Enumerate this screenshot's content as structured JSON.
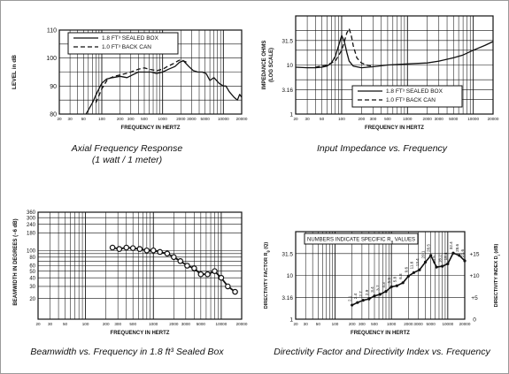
{
  "chart_data": [
    {
      "type": "line",
      "title": "Axial Frequency Response",
      "subtitle": "(1 watt / 1 meter)",
      "xlabel": "FREQUENCY IN HERTZ",
      "ylabel": "LEVEL in dB",
      "xscale": "log",
      "xlim": [
        20,
        20000
      ],
      "ylim": [
        80,
        110
      ],
      "x_ticks": [
        "20",
        "30",
        "50",
        "100",
        "200",
        "300",
        "500",
        "1000",
        "2000",
        "3000",
        "5000",
        "10000",
        "20000"
      ],
      "y_ticks": [
        "80",
        "90",
        "100",
        "110"
      ],
      "legend": {
        "placement": "top",
        "entries": [
          {
            "label": "1.8 FT³ SEALED BOX",
            "style": "solid"
          },
          {
            "label": "1.0 FT³ BACK CAN",
            "style": "dashed"
          }
        ]
      },
      "grid": true,
      "series": [
        {
          "name": "1.8 FT³ SEALED BOX",
          "style": "solid",
          "x": [
            55,
            70,
            85,
            100,
            120,
            150,
            200,
            260,
            320,
            400,
            500,
            650,
            800,
            1000,
            1250,
            1600,
            1900,
            2200,
            2700,
            3200,
            3800,
            4500,
            5200,
            6000,
            7000,
            8500,
            10000,
            11000,
            12500,
            15000,
            17000,
            18500,
            20000
          ],
          "y": [
            80,
            84,
            88,
            91,
            92.5,
            93,
            93.5,
            93,
            94,
            95,
            95,
            95,
            94.5,
            95,
            96,
            97,
            98.5,
            99,
            97,
            95.5,
            95,
            95,
            94.5,
            92,
            93,
            91,
            90,
            90,
            88,
            86,
            85,
            87,
            86
          ]
        },
        {
          "name": "1.0 FT³ BACK CAN",
          "style": "dashed",
          "x": [
            80,
            100,
            125,
            160,
            200,
            250,
            300,
            400,
            500,
            600,
            800,
            1000,
            1200,
            1500,
            1800,
            2000,
            2200,
            2500
          ],
          "y": [
            84,
            89,
            92.5,
            93.5,
            94,
            94.5,
            95,
            96,
            96.5,
            96,
            95.5,
            96,
            97,
            98,
            99,
            99.5,
            99,
            98.5
          ]
        }
      ]
    },
    {
      "type": "line",
      "title": "Input Impedance vs. Frequency",
      "xlabel": "FREQUENCY IN HERTZ",
      "ylabel": "IMPEDANCE OHMS",
      "ylabel2": "(LOG SCALE)",
      "xscale": "log",
      "yscale": "log",
      "xlim": [
        20,
        20000
      ],
      "ylim": [
        1,
        100
      ],
      "x_ticks": [
        "20",
        "30",
        "50",
        "100",
        "200",
        "300",
        "500",
        "1000",
        "2000",
        "3000",
        "5000",
        "10000",
        "20000"
      ],
      "y_ticks": [
        "1",
        "3.16",
        "10",
        "31.5"
      ],
      "legend": {
        "placement": "bottom-right",
        "entries": [
          {
            "label": "1.8 FT³ SEALED BOX",
            "style": "solid"
          },
          {
            "label": "1.0 FT³ BACK CAN",
            "style": "dashed"
          }
        ]
      },
      "grid": true,
      "series": [
        {
          "name": "1.8 FT³ SEALED BOX",
          "style": "solid",
          "x": [
            20,
            30,
            40,
            50,
            60,
            70,
            80,
            90,
            100,
            110,
            120,
            130,
            150,
            200,
            300,
            500,
            1000,
            2000,
            3000,
            5000,
            7000,
            10000,
            15000,
            20000
          ],
          "y": [
            9,
            8.8,
            8.8,
            9,
            9.5,
            11,
            15,
            25,
            40,
            30,
            18,
            12,
            9.5,
            8.8,
            9.2,
            10,
            10.5,
            11,
            12,
            14,
            16,
            20,
            25,
            30
          ]
        },
        {
          "name": "1.0 FT³ BACK CAN",
          "style": "dashed",
          "x": [
            40,
            60,
            80,
            100,
            110,
            120,
            130,
            140,
            150,
            170,
            200,
            250,
            300
          ],
          "y": [
            9,
            10,
            12,
            20,
            30,
            45,
            55,
            40,
            25,
            14,
            11,
            9.8,
            9.5
          ]
        }
      ]
    },
    {
      "type": "line",
      "title": "Beamwidth vs. Frequency in 1.8 ft³ Sealed Box",
      "xlabel": "FREQUENCY IN HERTZ",
      "ylabel": "BEAMWIDTH IN DEGREES (−6 dB)",
      "xscale": "log",
      "yscale": "log",
      "xlim": [
        20,
        20000
      ],
      "ylim": [
        10,
        360
      ],
      "x_ticks": [
        "20",
        "30",
        "50",
        "100",
        "200",
        "300",
        "500",
        "1000",
        "2000",
        "3000",
        "5000",
        "10000",
        "20000"
      ],
      "y_ticks": [
        "20",
        "30",
        "40",
        "50",
        "60",
        "80",
        "100",
        "180",
        "240",
        "300",
        "360"
      ],
      "grid": true,
      "series": [
        {
          "name": "1.8 FT³ SEALED BOX",
          "style": "solid-circles",
          "x": [
            250,
            315,
            400,
            500,
            630,
            800,
            1000,
            1250,
            1600,
            2000,
            2500,
            3150,
            4000,
            5000,
            6300,
            8000,
            10000,
            12500,
            16000
          ],
          "y": [
            110,
            105,
            110,
            108,
            105,
            100,
            100,
            95,
            90,
            80,
            70,
            60,
            55,
            45,
            45,
            50,
            40,
            30,
            25
          ]
        }
      ]
    },
    {
      "type": "line",
      "title": "Directivity Factor and Directivity Index vs. Frequency",
      "xlabel": "FREQUENCY IN HERTZ",
      "ylabel": "DIRECTIVITY FACTOR R",
      "ylabel_sub": "θ",
      "ylabel_tail": " (Q)",
      "ylabel_right": "DIRECTIVITY INDEX D",
      "ylabel_right_sub": "i",
      "ylabel_right_tail": " (dB)",
      "xscale": "log",
      "yscale": "log",
      "xlim": [
        20,
        20000
      ],
      "ylim": [
        1,
        100
      ],
      "x_ticks": [
        "20",
        "30",
        "50",
        "100",
        "200",
        "300",
        "500",
        "1000",
        "2000",
        "3000",
        "5000",
        "10000",
        "20000"
      ],
      "y_ticks": [
        "1",
        "3.16",
        "10",
        "31.5"
      ],
      "y2_ticks": [
        "0",
        "+5",
        "+10",
        "+15"
      ],
      "annotation_text": "NUMBERS INDICATE SPECIFIC R",
      "annotation_sub": "θ",
      "annotation_tail": " VALUES",
      "grid": true,
      "series": [
        {
          "name": "",
          "style": "solid-dots",
          "x": [
            200,
            250,
            315,
            400,
            500,
            630,
            800,
            1000,
            1250,
            1600,
            2000,
            2500,
            3150,
            4000,
            5000,
            6300,
            8000,
            10000,
            12500,
            16000,
            20000
          ],
          "y": [
            2.1,
            2.4,
            2.7,
            2.9,
            3.4,
            3.7,
            4.3,
            5.5,
            5.8,
            6.8,
            9.6,
            11.6,
            13.4,
            20.1,
            28.5,
            15.5,
            16.2,
            18.4,
            32.4,
            28.6,
            21.6
          ],
          "labels": [
            "2.1",
            "2.4",
            "2.7",
            "2.9",
            "3.4",
            "3.7",
            "4.3",
            "5.5",
            "5.8",
            "6.8",
            "9.6",
            "11.6",
            "13.4",
            "20.1",
            "28.5",
            "15.5",
            "16.2",
            "18.4",
            "32.4",
            "28.6",
            "21.6"
          ]
        }
      ]
    }
  ]
}
